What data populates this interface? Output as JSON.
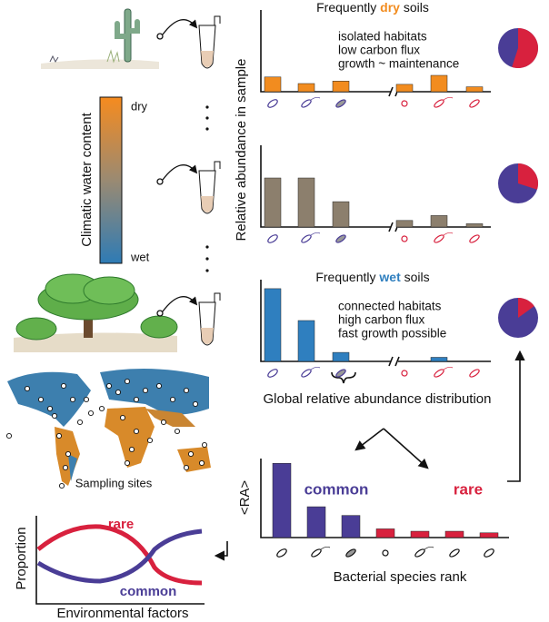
{
  "y_axis_label": "Relative abundance in sample",
  "colorbar": {
    "label": "Climatic water content",
    "top": "dry",
    "bottom": "wet"
  },
  "panels": [
    {
      "title": [
        "Frequently ",
        "dry",
        " soils"
      ],
      "notes": [
        "isolated habitats",
        "low carbon flux",
        "growth ~ maintenance"
      ],
      "color": "#f28c1f",
      "values": [
        18,
        10,
        13,
        9,
        20,
        6
      ],
      "pie_rare": 55
    },
    {
      "color": "#8c7f6d",
      "values": [
        60,
        60,
        31,
        8,
        14,
        4
      ],
      "pie_rare": 30
    },
    {
      "title": [
        "Frequently ",
        "wet",
        " soils"
      ],
      "notes": [
        "connected habitats",
        "high carbon flux",
        "fast growth possible"
      ],
      "color": "#2f7fbf",
      "values": [
        89,
        50,
        11,
        0,
        5,
        0
      ],
      "pie_rare": 15
    }
  ],
  "global_label": "Global relative abundance distribution",
  "map_label": "Sampling sites",
  "rank_chart": {
    "y_label": "<RA>",
    "x_label": "Bacterial species rank",
    "common_label": "common",
    "rare_label": "rare",
    "common_color": "#4a3d96",
    "rare_color": "#d8213e",
    "values": [
      94,
      39,
      28,
      11,
      8,
      8,
      6
    ]
  },
  "proportion_chart": {
    "y_label": "Proportion",
    "x_label": "Environmental factors",
    "rare_label": "rare",
    "common_label": "common"
  }
}
